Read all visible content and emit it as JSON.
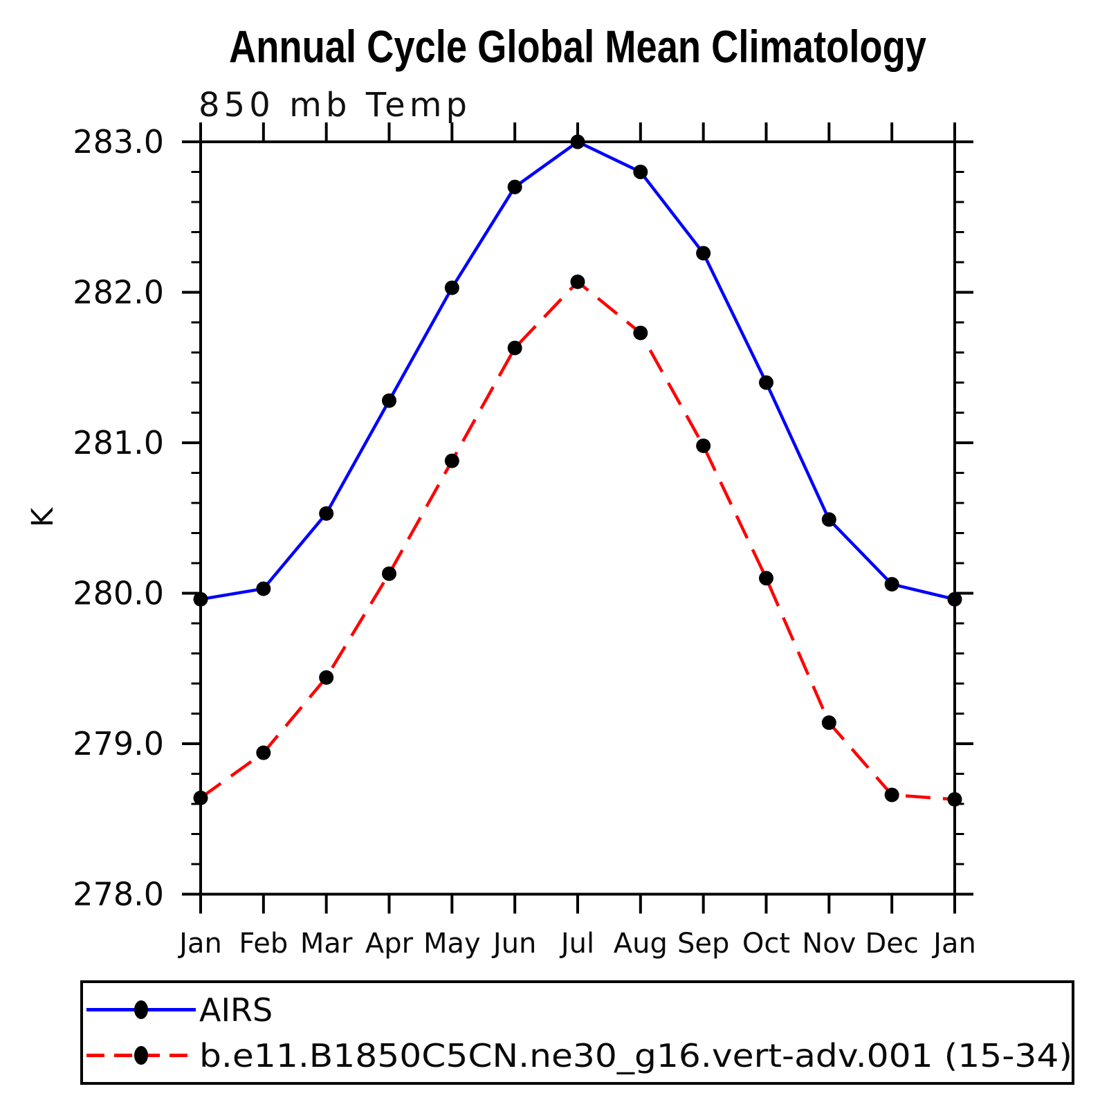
{
  "title": "Annual Cycle Global Mean Climatology",
  "subtitle": "850 mb Temp",
  "y_axis_label": "K",
  "colors": {
    "background": "#ffffff",
    "axis": "#000000",
    "airs_line": "#0000ff",
    "model_line": "#ff0000",
    "marker": "#000000"
  },
  "legend": {
    "items": [
      {
        "label": "AIRS",
        "line_color": "#0000ff",
        "line_style": "solid",
        "marker": "black-dot"
      },
      {
        "label": "b.e11.B1850C5CN.ne30_g16.vert-adv.001 (15-34)",
        "line_color": "#ff0000",
        "line_style": "dashed",
        "marker": "black-dot"
      }
    ]
  },
  "chart_data": {
    "type": "line",
    "title": "Annual Cycle Global Mean Climatology",
    "subtitle": "850 mb Temp",
    "xlabel": "",
    "ylabel": "K",
    "grid": false,
    "legend_position": "bottom",
    "ylim": [
      278.0,
      283.0
    ],
    "y_major_step": 1.0,
    "y_minor_step": 0.2,
    "y_tick_labels": [
      "278.0",
      "279.0",
      "280.0",
      "281.0",
      "282.0",
      "283.0"
    ],
    "x_tick_labels": [
      "Jan",
      "Feb",
      "Mar",
      "Apr",
      "May",
      "Jun",
      "Jul",
      "Aug",
      "Sep",
      "Oct",
      "Nov",
      "Dec",
      "Jan"
    ],
    "series": [
      {
        "name": "AIRS",
        "color": "#0000ff",
        "line_style": "solid",
        "marker": "circle",
        "marker_color": "#000000",
        "values": [
          279.96,
          280.03,
          280.53,
          281.28,
          282.03,
          282.7,
          283.0,
          282.8,
          282.26,
          281.4,
          280.49,
          280.06,
          279.96
        ]
      },
      {
        "name": "b.e11.B1850C5CN.ne30_g16.vert-adv.001 (15-34)",
        "color": "#ff0000",
        "line_style": "dashed",
        "marker": "circle",
        "marker_color": "#000000",
        "values": [
          278.64,
          278.94,
          279.44,
          280.13,
          280.88,
          281.63,
          282.07,
          281.73,
          280.98,
          280.1,
          279.14,
          278.66,
          278.63
        ]
      }
    ]
  }
}
